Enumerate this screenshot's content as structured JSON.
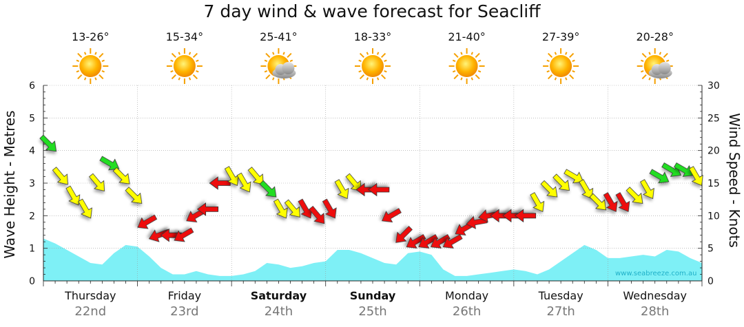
{
  "chart_data": {
    "type": "line",
    "title": "7 day wind & wave forecast for Seacliff",
    "ylabel_left": "Wave Height - Metres",
    "ylabel_right": "Wind Speed - Knots",
    "ylim_left": [
      0,
      6
    ],
    "ylim_right": [
      0,
      30
    ],
    "yticks_left": [
      "0",
      "1",
      "2",
      "3",
      "4",
      "5",
      "6"
    ],
    "yticks_right": [
      "0",
      "5",
      "10",
      "15",
      "20",
      "25",
      "30"
    ],
    "grid": true,
    "watermark": "www.seabreeze.com.au",
    "days": [
      {
        "name": "Thursday",
        "date": "22nd",
        "temp": "13-26°",
        "weather": "sunny-icon",
        "bold": false
      },
      {
        "name": "Friday",
        "date": "23rd",
        "temp": "15-34°",
        "weather": "sunny-icon",
        "bold": false
      },
      {
        "name": "Saturday",
        "date": "24th",
        "temp": "25-41°",
        "weather": "partly-cloudy-icon",
        "bold": true
      },
      {
        "name": "Sunday",
        "date": "25th",
        "temp": "18-33°",
        "weather": "sunny-icon",
        "bold": true
      },
      {
        "name": "Monday",
        "date": "26th",
        "temp": "21-40°",
        "weather": "sunny-icon",
        "bold": false
      },
      {
        "name": "Tuesday",
        "date": "27th",
        "temp": "27-39°",
        "weather": "sunny-icon",
        "bold": false
      },
      {
        "name": "Wednesday",
        "date": "28th",
        "temp": "20-28°",
        "weather": "partly-cloudy-icon",
        "bold": false
      }
    ],
    "wave_height_m": [
      1.3,
      1.15,
      0.95,
      0.75,
      0.55,
      0.5,
      0.85,
      1.1,
      1.05,
      0.75,
      0.4,
      0.2,
      0.2,
      0.3,
      0.2,
      0.15,
      0.15,
      0.2,
      0.3,
      0.55,
      0.5,
      0.4,
      0.45,
      0.55,
      0.6,
      0.95,
      0.95,
      0.85,
      0.7,
      0.55,
      0.5,
      0.85,
      0.9,
      0.8,
      0.35,
      0.15,
      0.15,
      0.2,
      0.25,
      0.3,
      0.35,
      0.3,
      0.2,
      0.35,
      0.6,
      0.85,
      1.1,
      0.95,
      0.7,
      0.7,
      0.75,
      0.8,
      0.75,
      0.95,
      0.9,
      0.7,
      0.55
    ],
    "wind_knots": [
      21,
      16,
      13,
      11,
      15,
      18,
      16,
      13,
      9,
      7,
      7,
      7,
      10,
      11,
      15,
      16,
      15,
      16,
      14,
      11,
      11,
      11,
      10,
      11,
      14,
      15,
      14,
      14,
      10,
      7,
      6,
      6,
      6,
      6,
      8,
      9,
      10,
      10,
      10,
      10,
      12,
      14,
      15,
      16,
      14,
      12,
      12,
      12,
      13,
      14,
      16,
      17,
      17,
      16
    ],
    "wind_color": [
      "green",
      "yellow",
      "yellow",
      "yellow",
      "yellow",
      "green",
      "yellow",
      "yellow",
      "red",
      "red",
      "red",
      "red",
      "red",
      "red",
      "red",
      "yellow",
      "yellow",
      "yellow",
      "green",
      "yellow",
      "yellow",
      "red",
      "red",
      "red",
      "yellow",
      "yellow",
      "red",
      "red",
      "red",
      "red",
      "red",
      "red",
      "red",
      "red",
      "red",
      "red",
      "red",
      "red",
      "red",
      "red",
      "yellow",
      "yellow",
      "yellow",
      "yellow",
      "yellow",
      "yellow",
      "red",
      "red",
      "yellow",
      "yellow",
      "green",
      "green",
      "green",
      "yellow"
    ],
    "wind_direction_deg": [
      315,
      320,
      330,
      330,
      320,
      300,
      315,
      315,
      60,
      70,
      90,
      60,
      60,
      90,
      90,
      330,
      330,
      320,
      315,
      330,
      320,
      330,
      320,
      330,
      330,
      320,
      90,
      90,
      60,
      45,
      60,
      60,
      60,
      60,
      60,
      80,
      80,
      90,
      90,
      90,
      330,
      315,
      315,
      300,
      330,
      315,
      330,
      330,
      315,
      330,
      300,
      300,
      300,
      330
    ],
    "colors": {
      "wave_fill": "#7ef0f6",
      "wave_line": "#33c8dc",
      "green": "#22dd22",
      "yellow": "#ffff00",
      "red": "#ee1111",
      "grid": "#999999"
    }
  }
}
